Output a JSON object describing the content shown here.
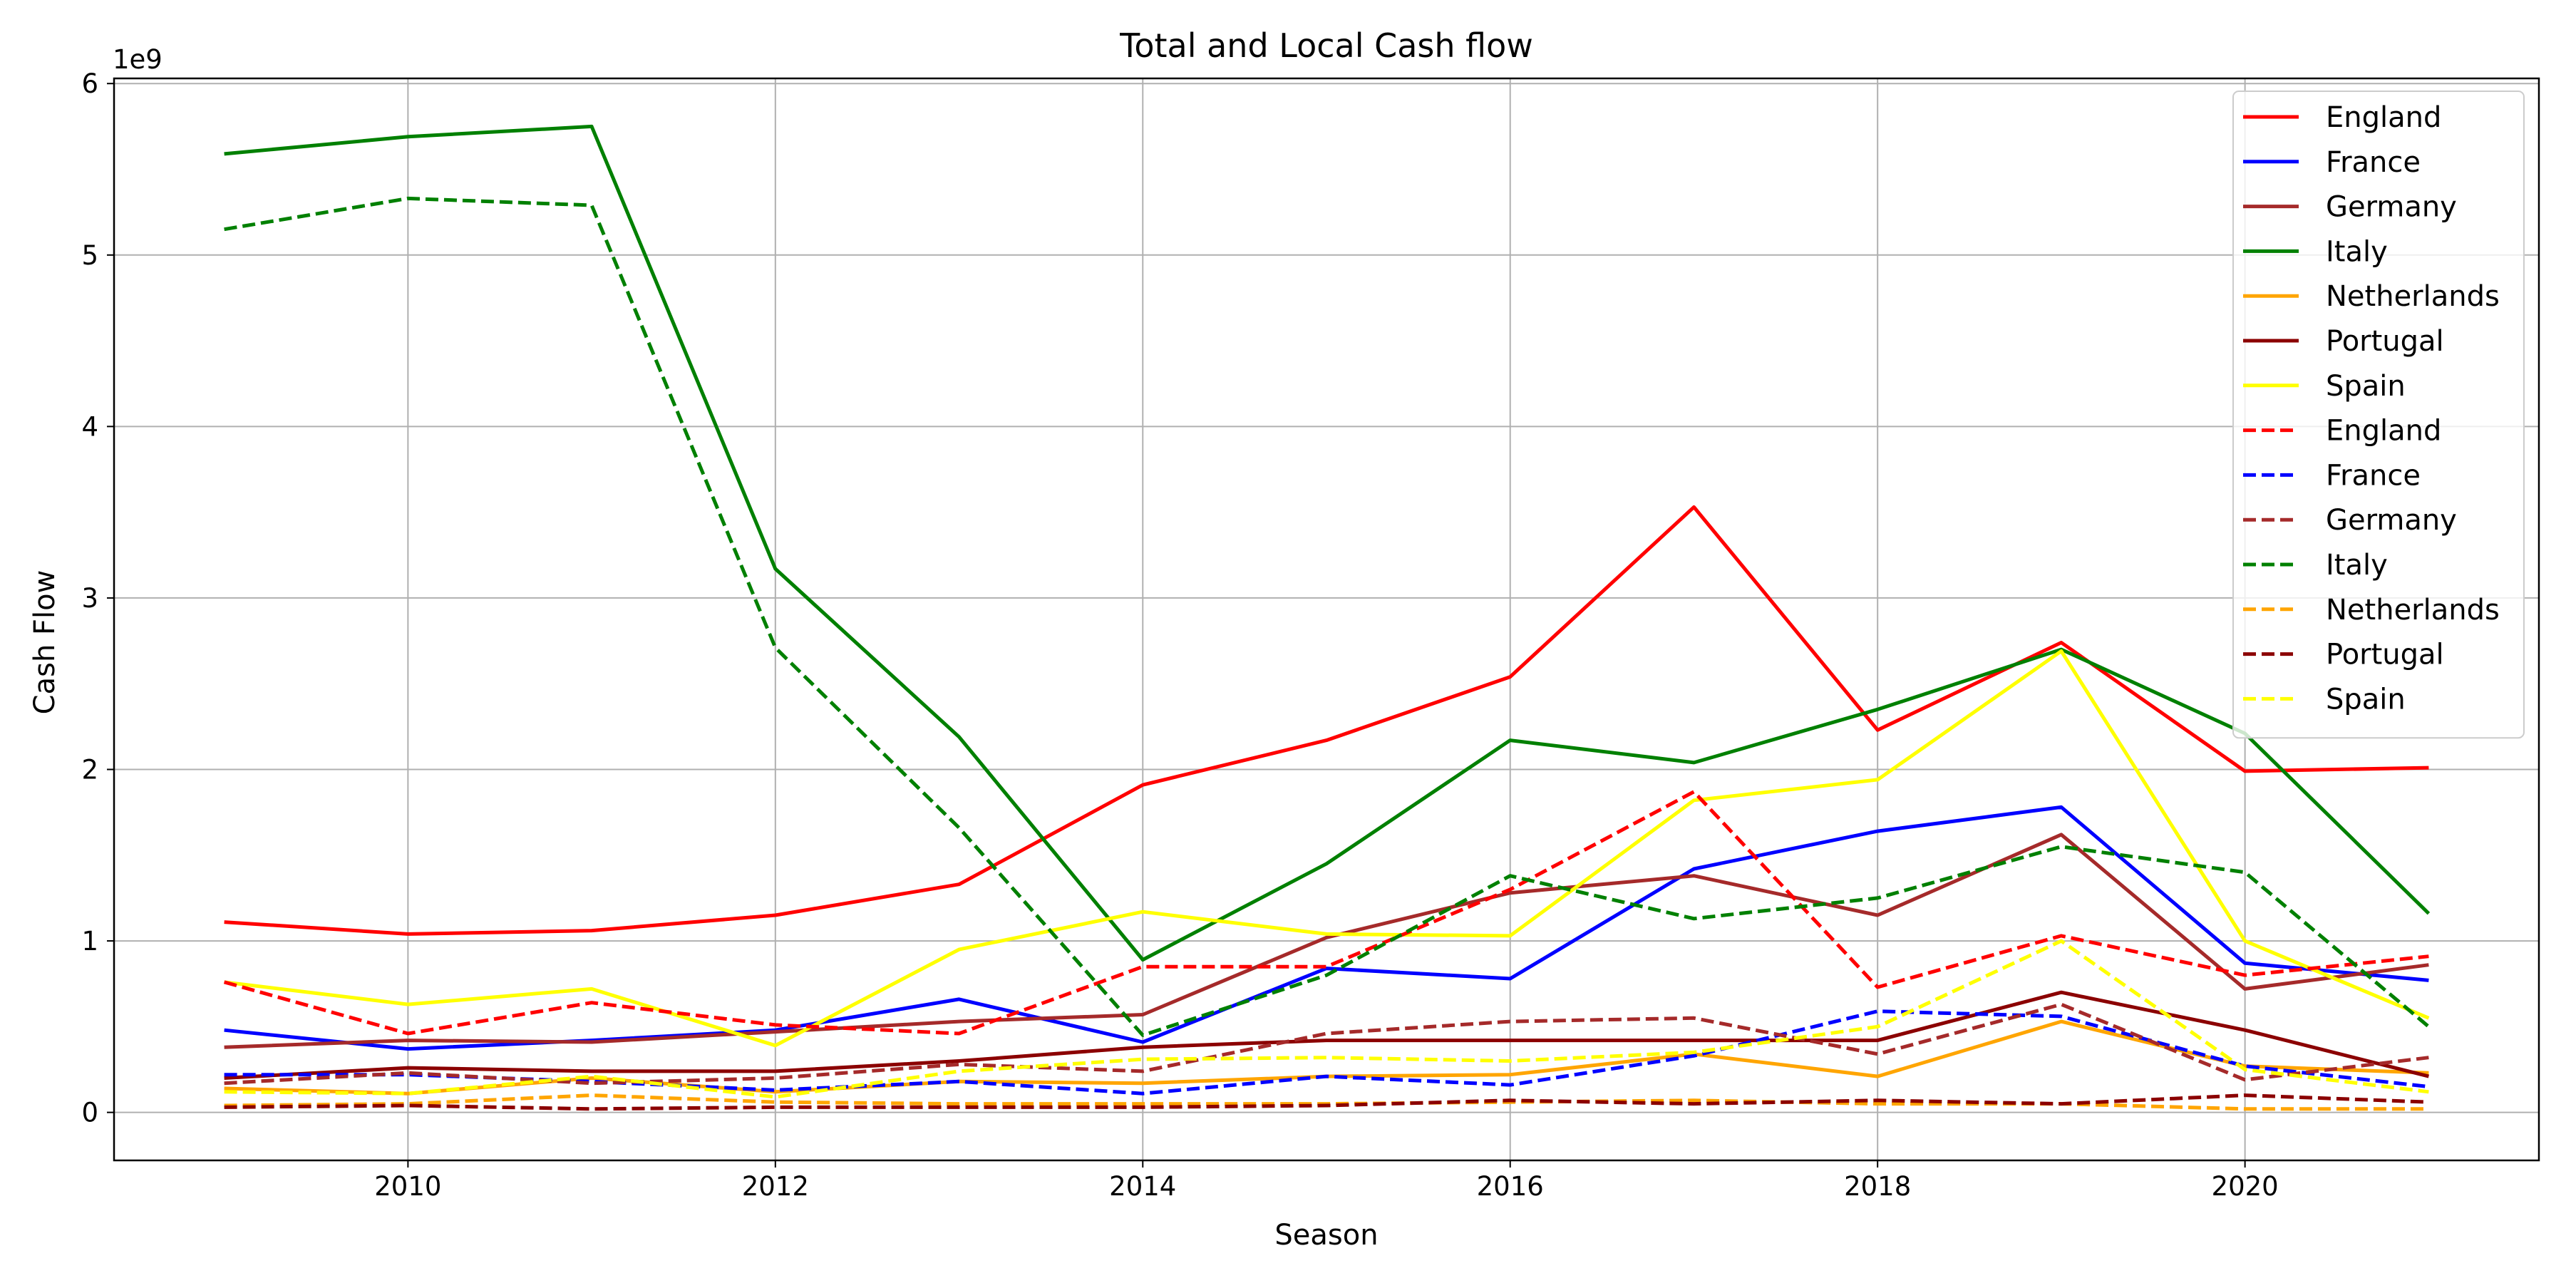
{
  "chart_data": {
    "type": "line",
    "title": "Total and Local Cash flow",
    "xlabel": "Season",
    "ylabel": "Cash Flow",
    "y_offset_label": "1e9",
    "xlim": [
      2008.4,
      2021.6
    ],
    "ylim": [
      -0.28,
      6.03
    ],
    "x_ticks": [
      2010,
      2012,
      2014,
      2016,
      2018,
      2020
    ],
    "y_ticks": [
      0,
      1,
      2,
      3,
      4,
      5,
      6
    ],
    "grid": true,
    "legend_position": "top-right",
    "x": [
      2009,
      2010,
      2011,
      2012,
      2013,
      2014,
      2015,
      2016,
      2017,
      2018,
      2019,
      2020,
      2021
    ],
    "series": [
      {
        "name": "England",
        "color": "#ff0000",
        "style": "solid",
        "values": [
          1.11,
          1.04,
          1.06,
          1.15,
          1.33,
          1.91,
          2.17,
          2.54,
          3.53,
          2.23,
          2.74,
          1.99,
          2.01
        ]
      },
      {
        "name": "France",
        "color": "#0000ff",
        "style": "solid",
        "values": [
          0.48,
          0.37,
          0.42,
          0.48,
          0.66,
          0.41,
          0.84,
          0.78,
          1.42,
          1.64,
          1.78,
          0.87,
          0.77
        ]
      },
      {
        "name": "Germany",
        "color": "#a52a2a",
        "style": "solid",
        "values": [
          0.38,
          0.42,
          0.41,
          0.47,
          0.53,
          0.57,
          1.02,
          1.28,
          1.38,
          1.15,
          1.62,
          0.72,
          0.86
        ]
      },
      {
        "name": "Italy",
        "color": "#008000",
        "style": "solid",
        "values": [
          5.59,
          5.69,
          5.75,
          3.17,
          2.19,
          0.89,
          1.45,
          2.17,
          2.04,
          2.35,
          2.7,
          2.21,
          1.16
        ]
      },
      {
        "name": "Netherlands",
        "color": "#ffa500",
        "style": "solid",
        "values": [
          0.14,
          0.11,
          0.2,
          0.12,
          0.18,
          0.17,
          0.21,
          0.22,
          0.34,
          0.21,
          0.53,
          0.27,
          0.23
        ]
      },
      {
        "name": "Portugal",
        "color": "#8b0000",
        "style": "solid",
        "values": [
          0.2,
          0.26,
          0.24,
          0.24,
          0.3,
          0.38,
          0.42,
          0.42,
          0.42,
          0.42,
          0.7,
          0.48,
          0.21
        ]
      },
      {
        "name": "Spain",
        "color": "#ffff00",
        "style": "solid",
        "values": [
          0.76,
          0.63,
          0.72,
          0.39,
          0.95,
          1.17,
          1.04,
          1.03,
          1.82,
          1.94,
          2.69,
          1.0,
          0.55
        ]
      },
      {
        "name": "England",
        "color": "#ff0000",
        "style": "dashed",
        "values": [
          0.76,
          0.46,
          0.64,
          0.51,
          0.46,
          0.85,
          0.85,
          1.3,
          1.87,
          0.73,
          1.03,
          0.8,
          0.91
        ]
      },
      {
        "name": "France",
        "color": "#0000ff",
        "style": "dashed",
        "values": [
          0.22,
          0.22,
          0.18,
          0.13,
          0.18,
          0.11,
          0.21,
          0.16,
          0.33,
          0.59,
          0.56,
          0.27,
          0.15
        ]
      },
      {
        "name": "Germany",
        "color": "#a52a2a",
        "style": "dashed",
        "values": [
          0.17,
          0.23,
          0.17,
          0.2,
          0.28,
          0.24,
          0.46,
          0.53,
          0.55,
          0.34,
          0.63,
          0.19,
          0.32
        ]
      },
      {
        "name": "Italy",
        "color": "#008000",
        "style": "dashed",
        "values": [
          5.15,
          5.33,
          5.29,
          2.71,
          1.66,
          0.45,
          0.8,
          1.38,
          1.13,
          1.25,
          1.55,
          1.4,
          0.5
        ]
      },
      {
        "name": "Netherlands",
        "color": "#ffa500",
        "style": "dashed",
        "values": [
          0.04,
          0.05,
          0.1,
          0.06,
          0.05,
          0.05,
          0.05,
          0.06,
          0.07,
          0.05,
          0.05,
          0.02,
          0.02
        ]
      },
      {
        "name": "Portugal",
        "color": "#8b0000",
        "style": "dashed",
        "values": [
          0.03,
          0.04,
          0.02,
          0.03,
          0.03,
          0.03,
          0.04,
          0.07,
          0.05,
          0.07,
          0.05,
          0.1,
          0.06
        ]
      },
      {
        "name": "Spain",
        "color": "#ffff00",
        "style": "dashed",
        "values": [
          0.12,
          0.11,
          0.21,
          0.09,
          0.24,
          0.31,
          0.32,
          0.3,
          0.35,
          0.5,
          1.0,
          0.25,
          0.12
        ]
      }
    ]
  }
}
